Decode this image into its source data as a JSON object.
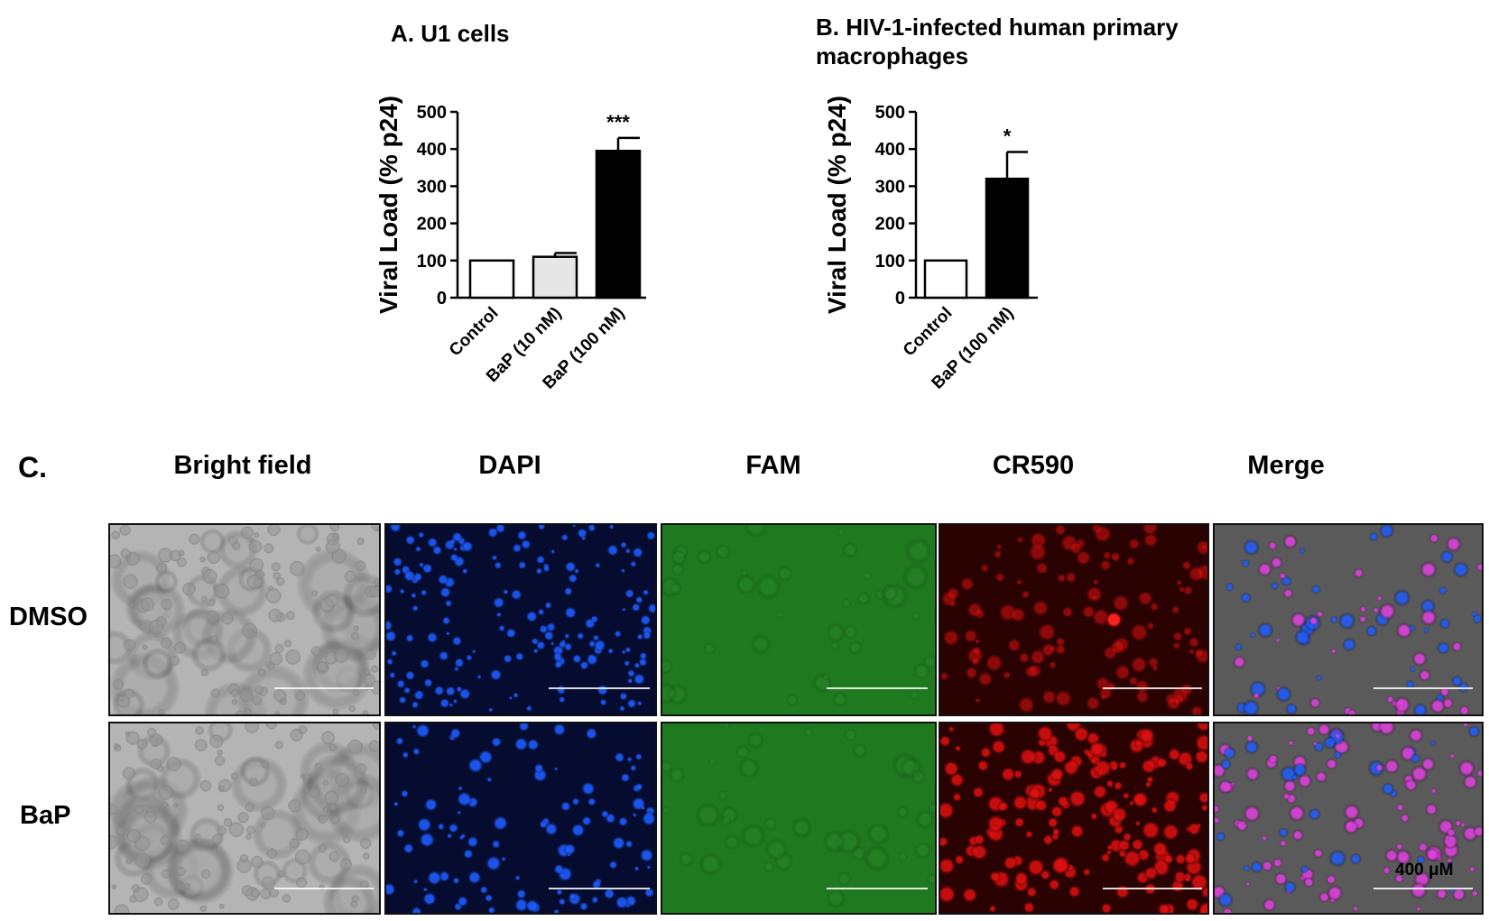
{
  "chart_data": [
    {
      "panel": "A.",
      "type": "bar",
      "title": "U1 cells",
      "xlabel": "",
      "ylabel": "Viral Load (% p24)",
      "ylim": [
        0,
        500
      ],
      "yticks": [
        0,
        100,
        200,
        300,
        400,
        500
      ],
      "categories": [
        "Control",
        "BaP (10 nM)",
        "BaP (100 nM)"
      ],
      "values": [
        100,
        110,
        395
      ],
      "errors": [
        0,
        10,
        35
      ],
      "bar_colors": [
        "#ffffff",
        "#e6e6e6",
        "#000000"
      ],
      "significance": [
        "",
        "",
        "***"
      ]
    },
    {
      "panel": "B.",
      "type": "bar",
      "title": "HIV-1-infected human primary macrophages",
      "xlabel": "",
      "ylabel": "Viral Load (% p24)",
      "ylim": [
        0,
        500
      ],
      "yticks": [
        0,
        100,
        200,
        300,
        400,
        500
      ],
      "categories": [
        "Control",
        "BaP (100 nM)"
      ],
      "values": [
        100,
        320
      ],
      "errors": [
        0,
        72
      ],
      "bar_colors": [
        "#ffffff",
        "#000000"
      ],
      "significance": [
        "",
        "*"
      ]
    }
  ],
  "panel_c": {
    "label": "C.",
    "columns": [
      "Bright field",
      "DAPI",
      "FAM",
      "CR590",
      "Merge"
    ],
    "rows": [
      "DMSO",
      "BaP"
    ],
    "scale_label": "400 μM",
    "channel_colors": {
      "bright_field": "#b4b4b4",
      "dapi": "#1e5cff",
      "fam": "#1f7a1f",
      "cr590": "#e01010",
      "merge_cell": "#e040e0"
    }
  }
}
